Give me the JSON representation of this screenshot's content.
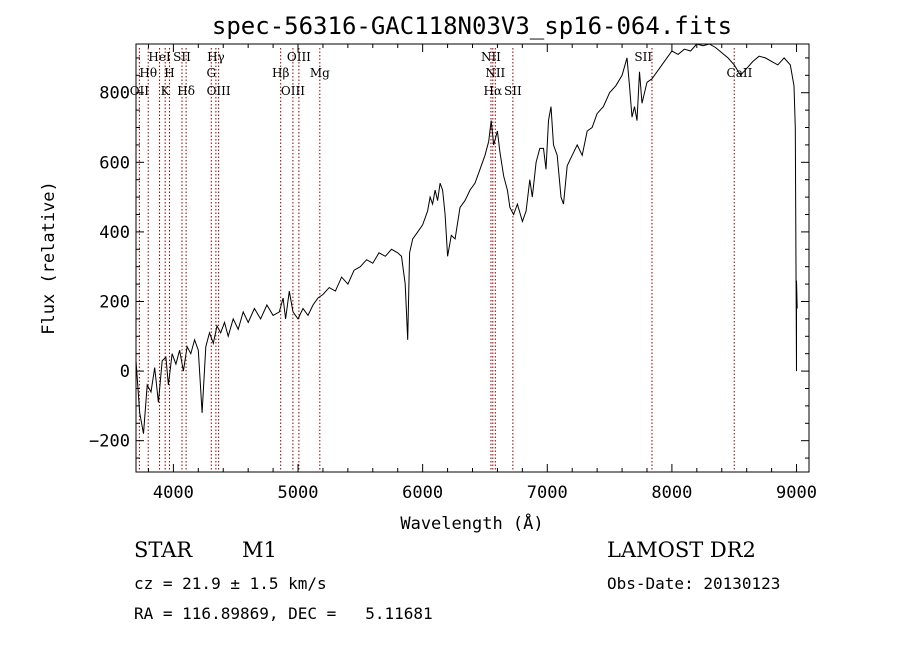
{
  "chart_data": {
    "type": "line",
    "title": "spec-56316-GAC118N03V3_sp16-064.fits",
    "xlabel": "Wavelength (Å)",
    "ylabel": "Flux (relative)",
    "xlim": [
      3700,
      9100
    ],
    "ylim": [
      -290,
      940
    ],
    "xticks": [
      4000,
      5000,
      6000,
      7000,
      8000,
      9000
    ],
    "yticks": [
      -200,
      0,
      200,
      400,
      600,
      800
    ],
    "grid": false,
    "series": [
      {
        "color": "#000000",
        "points": [
          [
            3700,
            30
          ],
          [
            3730,
            -120
          ],
          [
            3760,
            -180
          ],
          [
            3790,
            -40
          ],
          [
            3820,
            -60
          ],
          [
            3850,
            10
          ],
          [
            3880,
            -90
          ],
          [
            3910,
            30
          ],
          [
            3940,
            40
          ],
          [
            3960,
            -40
          ],
          [
            3990,
            50
          ],
          [
            4020,
            20
          ],
          [
            4050,
            60
          ],
          [
            4080,
            0
          ],
          [
            4110,
            70
          ],
          [
            4140,
            50
          ],
          [
            4170,
            90
          ],
          [
            4200,
            60
          ],
          [
            4230,
            -120
          ],
          [
            4260,
            70
          ],
          [
            4290,
            110
          ],
          [
            4320,
            80
          ],
          [
            4350,
            130
          ],
          [
            4380,
            110
          ],
          [
            4410,
            140
          ],
          [
            4440,
            100
          ],
          [
            4480,
            150
          ],
          [
            4520,
            120
          ],
          [
            4560,
            170
          ],
          [
            4600,
            140
          ],
          [
            4650,
            180
          ],
          [
            4700,
            150
          ],
          [
            4750,
            190
          ],
          [
            4800,
            160
          ],
          [
            4850,
            170
          ],
          [
            4880,
            210
          ],
          [
            4900,
            150
          ],
          [
            4930,
            230
          ],
          [
            4960,
            170
          ],
          [
            5000,
            150
          ],
          [
            5040,
            180
          ],
          [
            5080,
            160
          ],
          [
            5120,
            190
          ],
          [
            5160,
            210
          ],
          [
            5200,
            220
          ],
          [
            5250,
            240
          ],
          [
            5300,
            230
          ],
          [
            5350,
            270
          ],
          [
            5400,
            250
          ],
          [
            5450,
            290
          ],
          [
            5500,
            300
          ],
          [
            5550,
            320
          ],
          [
            5600,
            310
          ],
          [
            5650,
            340
          ],
          [
            5700,
            330
          ],
          [
            5750,
            350
          ],
          [
            5800,
            340
          ],
          [
            5830,
            330
          ],
          [
            5860,
            250
          ],
          [
            5880,
            90
          ],
          [
            5895,
            340
          ],
          [
            5920,
            380
          ],
          [
            5960,
            400
          ],
          [
            6000,
            420
          ],
          [
            6040,
            460
          ],
          [
            6060,
            500
          ],
          [
            6080,
            480
          ],
          [
            6100,
            520
          ],
          [
            6120,
            490
          ],
          [
            6140,
            540
          ],
          [
            6160,
            520
          ],
          [
            6180,
            450
          ],
          [
            6200,
            330
          ],
          [
            6230,
            390
          ],
          [
            6260,
            380
          ],
          [
            6300,
            470
          ],
          [
            6340,
            490
          ],
          [
            6380,
            520
          ],
          [
            6420,
            540
          ],
          [
            6460,
            580
          ],
          [
            6500,
            620
          ],
          [
            6530,
            660
          ],
          [
            6550,
            720
          ],
          [
            6570,
            650
          ],
          [
            6600,
            690
          ],
          [
            6620,
            630
          ],
          [
            6650,
            560
          ],
          [
            6680,
            520
          ],
          [
            6700,
            470
          ],
          [
            6730,
            450
          ],
          [
            6760,
            480
          ],
          [
            6800,
            430
          ],
          [
            6830,
            460
          ],
          [
            6860,
            550
          ],
          [
            6880,
            500
          ],
          [
            6910,
            600
          ],
          [
            6940,
            640
          ],
          [
            6970,
            640
          ],
          [
            6990,
            580
          ],
          [
            7010,
            720
          ],
          [
            7030,
            760
          ],
          [
            7050,
            650
          ],
          [
            7080,
            620
          ],
          [
            7110,
            500
          ],
          [
            7130,
            480
          ],
          [
            7160,
            590
          ],
          [
            7200,
            620
          ],
          [
            7240,
            650
          ],
          [
            7280,
            620
          ],
          [
            7320,
            690
          ],
          [
            7360,
            700
          ],
          [
            7400,
            740
          ],
          [
            7450,
            760
          ],
          [
            7500,
            800
          ],
          [
            7550,
            820
          ],
          [
            7600,
            850
          ],
          [
            7640,
            900
          ],
          [
            7660,
            820
          ],
          [
            7680,
            730
          ],
          [
            7700,
            760
          ],
          [
            7720,
            720
          ],
          [
            7740,
            860
          ],
          [
            7760,
            770
          ],
          [
            7800,
            830
          ],
          [
            7840,
            840
          ],
          [
            7880,
            860
          ],
          [
            7920,
            880
          ],
          [
            7960,
            900
          ],
          [
            8000,
            920
          ],
          [
            8050,
            910
          ],
          [
            8100,
            925
          ],
          [
            8150,
            920
          ],
          [
            8200,
            940
          ],
          [
            8250,
            935
          ],
          [
            8300,
            940
          ],
          [
            8350,
            930
          ],
          [
            8400,
            915
          ],
          [
            8450,
            900
          ],
          [
            8500,
            880
          ],
          [
            8550,
            850
          ],
          [
            8600,
            870
          ],
          [
            8650,
            890
          ],
          [
            8700,
            905
          ],
          [
            8750,
            900
          ],
          [
            8800,
            890
          ],
          [
            8850,
            880
          ],
          [
            8900,
            900
          ],
          [
            8950,
            880
          ],
          [
            8980,
            820
          ],
          [
            8990,
            700
          ],
          [
            9000,
            0
          ],
          [
            9000,
            260
          ],
          [
            9005,
            180
          ]
        ]
      }
    ],
    "line_markers": {
      "color": "#8b0000",
      "labels": [
        {
          "text": "HeI",
          "wavelength": 3889,
          "row": 1
        },
        {
          "text": "SII",
          "wavelength": 4069,
          "row": 1
        },
        {
          "text": "Hγ",
          "wavelength": 4341,
          "row": 1
        },
        {
          "text": "OIII",
          "wavelength": 5007,
          "row": 1
        },
        {
          "text": "NII",
          "wavelength": 6548,
          "row": 1
        },
        {
          "text": "SII",
          "wavelength": 7770,
          "row": 1
        },
        {
          "text": "Hθ",
          "wavelength": 3798,
          "row": 2
        },
        {
          "text": "H",
          "wavelength": 3969,
          "row": 2
        },
        {
          "text": "G",
          "wavelength": 4304,
          "row": 2
        },
        {
          "text": "Hβ",
          "wavelength": 4861,
          "row": 2
        },
        {
          "text": "Mg",
          "wavelength": 5175,
          "row": 2
        },
        {
          "text": "NII",
          "wavelength": 6583,
          "row": 2
        },
        {
          "text": "CaII",
          "wavelength": 8542,
          "row": 2
        },
        {
          "text": "OII",
          "wavelength": 3727,
          "row": 3
        },
        {
          "text": "K",
          "wavelength": 3934,
          "row": 3
        },
        {
          "text": "Hδ",
          "wavelength": 4102,
          "row": 3
        },
        {
          "text": "OIII",
          "wavelength": 4363,
          "row": 3
        },
        {
          "text": "OIII",
          "wavelength": 4959,
          "row": 3
        },
        {
          "text": "Hα",
          "wavelength": 6563,
          "row": 3
        },
        {
          "text": "SII",
          "wavelength": 6724,
          "row": 3
        }
      ],
      "lines": [
        3727,
        3798,
        3889,
        3934,
        3969,
        4069,
        4102,
        4304,
        4341,
        4363,
        4861,
        4959,
        5007,
        5175,
        6548,
        6563,
        6583,
        6724,
        7840,
        8500
      ]
    }
  },
  "info": {
    "object_class": "STAR",
    "subclass": "M1",
    "survey": "LAMOST DR2",
    "cz_line": "cz = 21.9 ± 1.5 km/s",
    "obs_date": "Obs-Date: 20130123",
    "coords_line": "RA = 116.89869, DEC =   5.11681"
  }
}
